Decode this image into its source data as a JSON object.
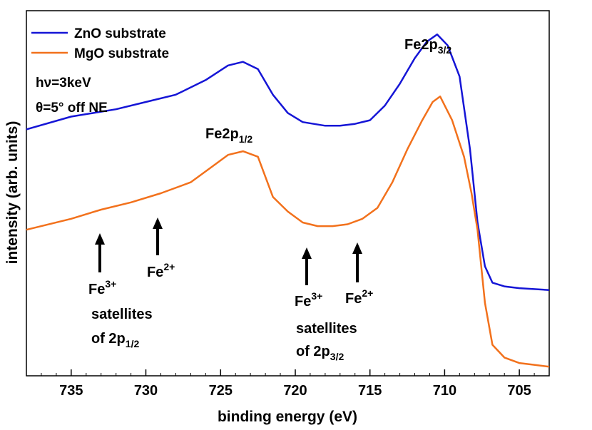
{
  "chart_data": {
    "type": "line",
    "xlabel": "binding energy (eV)",
    "ylabel": "intensity (arb. units)",
    "xlim": [
      738,
      703
    ],
    "ylim": [
      0,
      1
    ],
    "x_reversed": true,
    "x_ticks": [
      735,
      730,
      725,
      720,
      715,
      710,
      705
    ],
    "y_ticks_labeled": false,
    "legend_position": "top-left",
    "series": [
      {
        "name": "ZnO substrate",
        "color": "#1515d6",
        "x": [
          738,
          735,
          732,
          730,
          728,
          726,
          724.5,
          723.5,
          722.5,
          721.5,
          720.5,
          719.5,
          718,
          717,
          716,
          715,
          714,
          713,
          712,
          711.2,
          710.5,
          709.8,
          709,
          708.3,
          707.8,
          707.3,
          706.8,
          706,
          705,
          703
        ],
        "values": [
          0.675,
          0.71,
          0.73,
          0.75,
          0.77,
          0.81,
          0.85,
          0.86,
          0.84,
          0.77,
          0.72,
          0.695,
          0.685,
          0.685,
          0.69,
          0.7,
          0.74,
          0.8,
          0.87,
          0.915,
          0.935,
          0.905,
          0.82,
          0.62,
          0.42,
          0.3,
          0.255,
          0.245,
          0.24,
          0.235
        ]
      },
      {
        "name": "MgO substrate",
        "color": "#f2711c",
        "x": [
          738,
          735,
          733,
          731,
          729,
          727,
          725.5,
          724.5,
          723.5,
          722.5,
          721.5,
          720.5,
          719.5,
          718.5,
          717.5,
          716.5,
          715.5,
          714.5,
          713.5,
          712.5,
          711.5,
          710.8,
          710.3,
          709.5,
          708.7,
          708.2,
          707.8,
          707.3,
          706.8,
          706,
          705,
          704,
          703
        ],
        "values": [
          0.4,
          0.43,
          0.455,
          0.475,
          0.5,
          0.53,
          0.575,
          0.605,
          0.615,
          0.6,
          0.49,
          0.45,
          0.42,
          0.41,
          0.41,
          0.415,
          0.43,
          0.46,
          0.53,
          0.62,
          0.7,
          0.75,
          0.765,
          0.7,
          0.6,
          0.5,
          0.4,
          0.2,
          0.085,
          0.05,
          0.035,
          0.03,
          0.025
        ]
      }
    ],
    "legend": [
      {
        "label": "ZnO substrate",
        "color": "#1515d6"
      },
      {
        "label": "MgO substrate",
        "color": "#f2711c"
      }
    ],
    "conditions": {
      "line1": "hν=3keV",
      "line2": "θ=5° off NE"
    },
    "annotations": {
      "fe2p32": {
        "base": "Fe2p",
        "sub": "3/2"
      },
      "fe2p12": {
        "base": "Fe2p",
        "sub": "1/2"
      },
      "fe3_left": {
        "base": "Fe",
        "sup": "3+"
      },
      "fe2_left": {
        "base": "Fe",
        "sup": "2+"
      },
      "fe3_right": {
        "base": "Fe",
        "sup": "3+"
      },
      "fe2_right": {
        "base": "Fe",
        "sup": "2+"
      },
      "sat_left_line1": "satellites",
      "sat_left_line2": {
        "base": "of 2p",
        "sub": "1/2"
      },
      "sat_right_line1": "satellites",
      "sat_right_line2": {
        "base": "of 2p",
        "sub": "3/2"
      }
    }
  }
}
